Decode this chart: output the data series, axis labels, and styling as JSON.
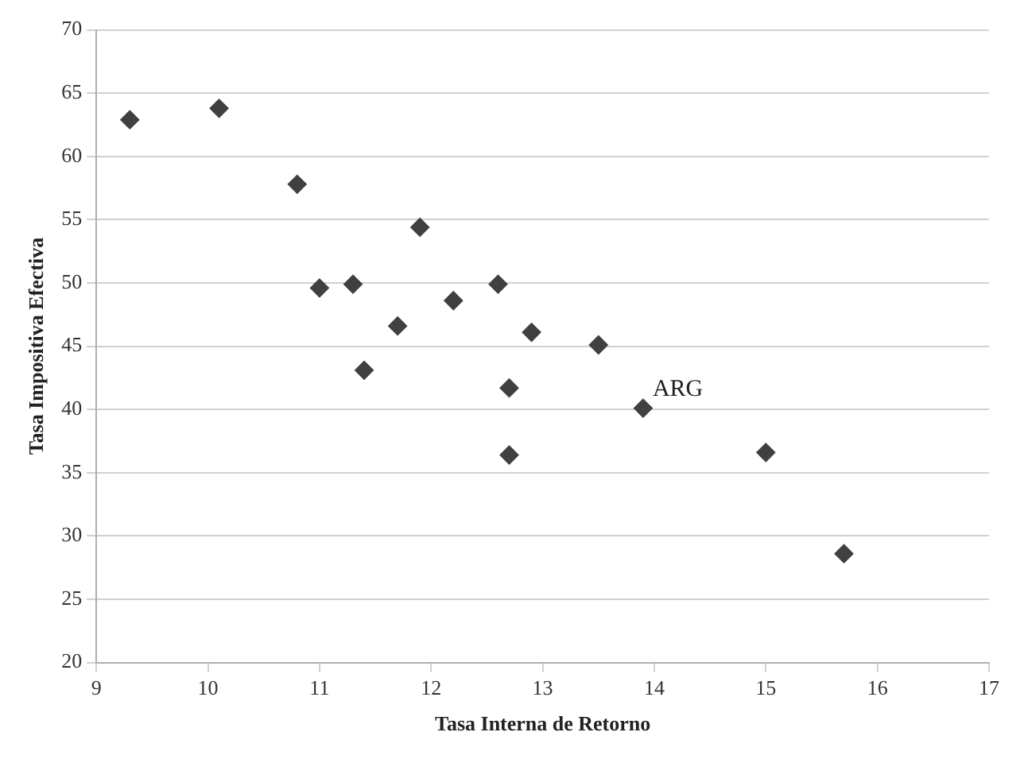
{
  "chart_data": {
    "type": "scatter",
    "xlabel": "Tasa Interna de Retorno",
    "ylabel": "Tasa Impositiva Efectiva",
    "x": [
      9.3,
      10.1,
      10.8,
      11.9,
      11.0,
      11.3,
      12.6,
      12.2,
      11.7,
      12.9,
      13.5,
      11.4,
      12.7,
      13.9,
      12.7,
      15.0,
      15.7
    ],
    "series": [
      {
        "color": "#404040",
        "values": [
          62.9,
          63.8,
          57.8,
          54.4,
          49.6,
          49.9,
          49.9,
          48.6,
          46.6,
          46.1,
          45.1,
          43.1,
          41.7,
          40.1,
          36.4,
          36.6,
          28.6
        ]
      }
    ],
    "annotations": [
      {
        "text": "ARG",
        "x": 13.9,
        "y": 40.1
      }
    ],
    "xlim": [
      9,
      17
    ],
    "xticks": [
      9,
      10,
      11,
      12,
      13,
      14,
      15,
      16,
      17
    ],
    "ylim": [
      20,
      70
    ],
    "yticks": [
      20,
      25,
      30,
      35,
      40,
      45,
      50,
      55,
      60,
      65,
      70
    ],
    "grid": "y",
    "marker": "diamond",
    "legend": false
  }
}
